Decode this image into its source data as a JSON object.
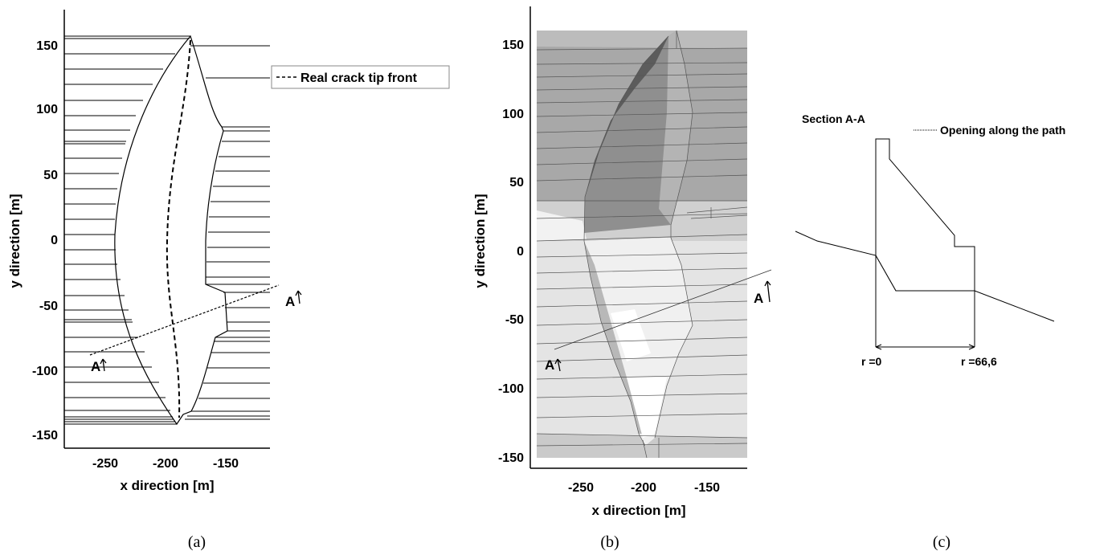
{
  "panels": [
    {
      "caption": "(a)",
      "chart_data": {
        "type": "line",
        "xlabel": "x direction [m]",
        "ylabel": "y direction [m]",
        "xlim": [
          -285,
          -112
        ],
        "ylim": [
          -157,
          165
        ],
        "xticks": [
          -250,
          -200,
          -150
        ],
        "yticks": [
          150,
          100,
          50,
          0,
          -50,
          -100,
          -150
        ],
        "legend": {
          "position": "top-right",
          "entries": [
            "Real crack tip front"
          ]
        },
        "series": [
          {
            "name": "Real crack tip front",
            "style": "dashed",
            "x": [
              -180,
              -182,
              -187,
              -193,
              -199,
              -202,
              -204,
              -203,
              -200,
              -196,
              -193,
              -191,
              -190,
              -190
            ],
            "y": [
              155,
              130,
              100,
              70,
              40,
              10,
              -20,
              -45,
              -70,
              -90,
              -105,
              -120,
              -132,
              -142
            ]
          }
        ],
        "annotations": [
          "A",
          "A"
        ]
      }
    },
    {
      "caption": "(b)",
      "chart_data": {
        "type": "scatter",
        "xlabel": "x direction [m]",
        "ylabel": "y direction [m]",
        "xlim": [
          -285,
          -120
        ],
        "ylim": [
          -157,
          170
        ],
        "xticks": [
          -250,
          -200,
          -150
        ],
        "yticks": [
          150,
          100,
          50,
          0,
          -50,
          -100,
          -150
        ],
        "annotations": [
          "A",
          "A"
        ]
      }
    },
    {
      "caption": "(c)",
      "chart_data": {
        "type": "line",
        "title": "Section A-A",
        "legend": {
          "position": "top-right",
          "entries": [
            "Opening along the path"
          ]
        },
        "series": [
          {
            "name": "Opening along the path",
            "style": "dotted"
          }
        ],
        "annotations": [
          "r =0",
          "r =66,6"
        ]
      }
    }
  ]
}
